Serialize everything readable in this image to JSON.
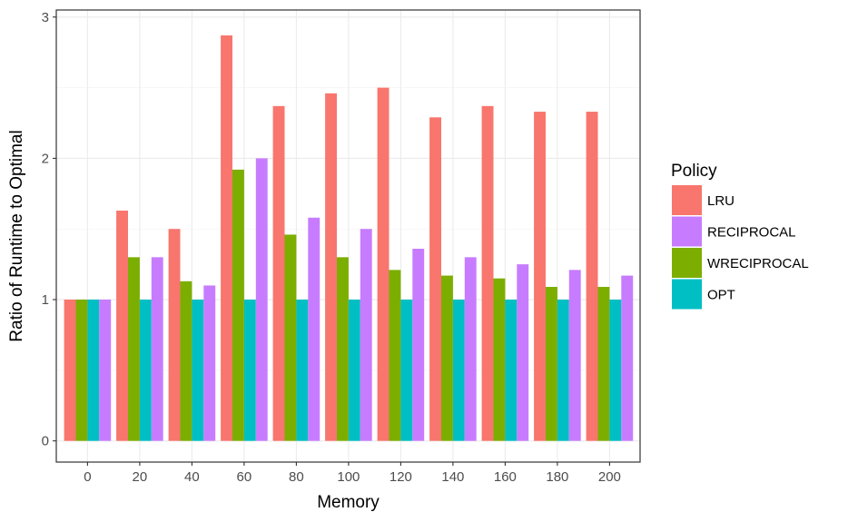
{
  "chart_data": {
    "type": "bar",
    "xlabel": "Memory",
    "ylabel": "Ratio of Runtime to Optimal",
    "categories": [
      "0",
      "20",
      "40",
      "60",
      "80",
      "100",
      "120",
      "140",
      "160",
      "180",
      "200"
    ],
    "ylim": [
      -0.15,
      3.05
    ],
    "yticks": [
      0,
      1,
      2,
      3
    ],
    "grid": true,
    "legend": {
      "title": "Policy",
      "placement": "right"
    },
    "series": [
      {
        "name": "LRU",
        "color": "#F8766D",
        "values": [
          1.0,
          1.63,
          1.5,
          2.87,
          2.37,
          2.46,
          2.5,
          2.29,
          2.37,
          2.33,
          2.33
        ]
      },
      {
        "name": "WRECIPROCAL",
        "color": "#7CAE00",
        "values": [
          1.0,
          1.3,
          1.13,
          1.92,
          1.46,
          1.3,
          1.21,
          1.17,
          1.15,
          1.09,
          1.09
        ]
      },
      {
        "name": "OPT",
        "color": "#00BFC4",
        "values": [
          1.0,
          1.0,
          1.0,
          1.0,
          1.0,
          1.0,
          1.0,
          1.0,
          1.0,
          1.0,
          1.0
        ]
      },
      {
        "name": "RECIPROCAL",
        "color": "#C77CFF",
        "values": [
          1.0,
          1.3,
          1.1,
          2.0,
          1.58,
          1.5,
          1.36,
          1.3,
          1.25,
          1.21,
          1.17
        ]
      }
    ],
    "legend_order": [
      "LRU",
      "RECIPROCAL",
      "WRECIPROCAL",
      "OPT"
    ]
  }
}
